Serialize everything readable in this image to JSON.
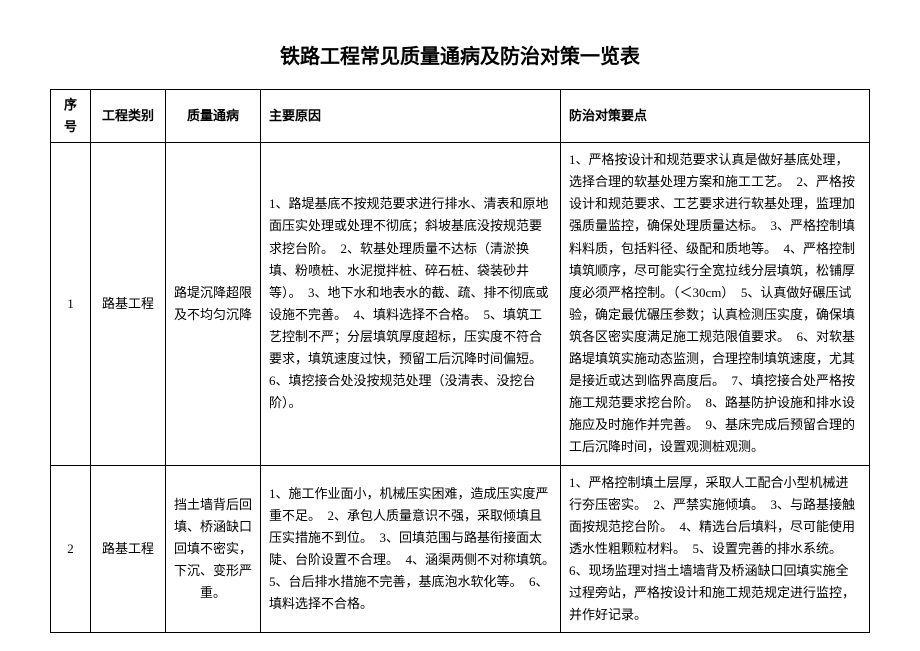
{
  "title": "铁路工程常见质量通病及防治对策一览表",
  "headers": {
    "seq": "序号",
    "type": "工程类别",
    "defect": "质量通病",
    "cause": "主要原因",
    "counter": "防治对策要点"
  },
  "rows": [
    {
      "seq": "1",
      "type": "路基工程",
      "defect": "路堤沉降超限及不均匀沉降",
      "cause": "1、路堤基底不按规范要求进行排水、清表和原地面压实处理或处理不彻底；斜坡基底没按规范要求挖台阶。　2、软基处理质量不达标（清淤换填、粉喷桩、水泥搅拌桩、碎石桩、袋装砂井等）。　3、地下水和地表水的截、疏、排不彻底或设施不完善。　4、填料选择不合格。　5、填筑工艺控制不严；分层填筑厚度超标，压实度不符合要求，填筑速度过快，预留工后沉降时间偏短。　6、填挖接合处没按规范处理（没清表、没挖台阶）。",
      "counter": "1、严格按设计和规范要求认真是做好基底处理，选择合理的软基处理方案和施工工艺。　2、严格按设计和规范要求、工艺要求进行软基处理，监理加强质量监控，确保处理质量达标。　3、严格控制填料料质，包括料径、级配和质地等。　4、严格控制填筑顺序，尽可能实行全宽拉线分层填筑，松铺厚度必须严格控制。（＜30cm）　5、认真做好碾压试验，确定最优碾压参数；认真检测压实度，确保填筑各区密实度满足施工规范限值要求。　6、对软基路堤填筑实施动态监测，合理控制填筑速度，尤其是接近或达到临界高度后。　7、填挖接合处严格按施工规范要求挖台阶。　8、路基防护设施和排水设施应及时施作并完善。　9、基床完成后预留合理的工后沉降时间，设置观测桩观测。"
    },
    {
      "seq": "2",
      "type": "路基工程",
      "defect": "挡土墙背后回填、桥涵缺口回填不密实，下沉、变形严重。",
      "cause": "1、施工作业面小，机械压实困难，造成压实度严重不足。　2、承包人质量意识不强，采取倾填且压实措施不到位。　3、回填范围与路基衔接面太陡、台阶设置不合理。　4、涵渠两侧不对称填筑。　5、台后排水措施不完善，基底泡水软化等。　6、填料选择不合格。",
      "counter": "1、严格控制填土层厚，采取人工配合小型机械进行夯压密实。　2、严禁实施倾填。　3、与路基接触面按规范挖台阶。　4、精选台后填料，尽可能使用透水性粗颗粒材料。　5、设置完善的排水系统。　6、现场监理对挡土墙墙背及桥涵缺口回填实施全过程旁站，严格按设计和施工规范规定进行监控，并作好记录。"
    }
  ]
}
